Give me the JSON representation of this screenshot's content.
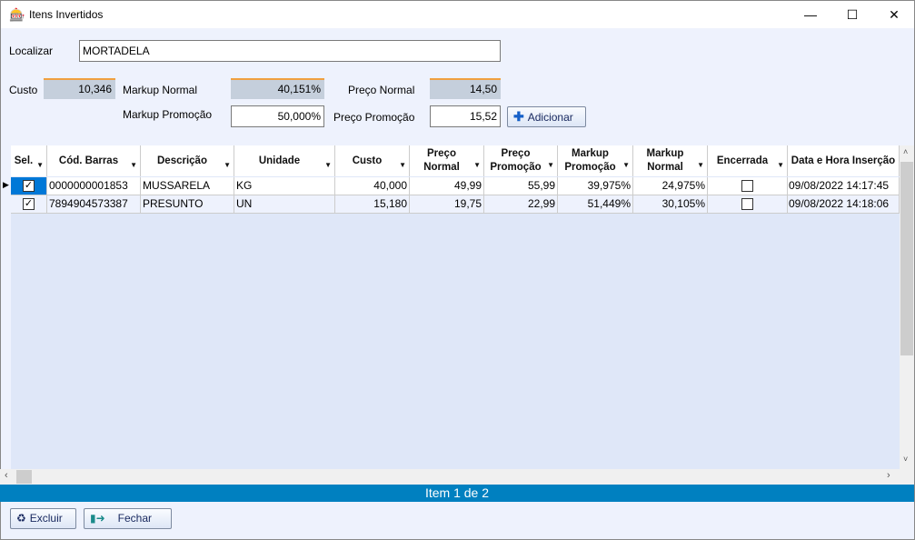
{
  "window": {
    "title": "Itens Invertidos",
    "minimize": "—",
    "maximize": "☐",
    "close": "✕"
  },
  "search": {
    "label": "Localizar",
    "value": "MORTADELA"
  },
  "summary": {
    "custo_label": "Custo",
    "custo": "10,346",
    "markup_normal_label": "Markup Normal",
    "markup_normal": "40,151%",
    "preco_normal_label": "Preço Normal",
    "preco_normal": "14,50",
    "markup_promocao_label": "Markup Promoção",
    "markup_promocao": "50,000%",
    "preco_promocao_label": "Preço Promoção",
    "preco_promocao": "15,52",
    "add_label": "Adicionar"
  },
  "grid": {
    "columns": [
      "Sel.",
      "Cód. Barras",
      "Descrição",
      "Unidade",
      "Custo",
      "Preço Normal",
      "Preço Promoção",
      "Markup Promoção",
      "Markup Normal",
      "Encerrada",
      "Data e Hora Inserção"
    ],
    "rows": [
      {
        "sel": true,
        "codigo": "0000000001853",
        "descricao": "MUSSARELA",
        "unidade": "KG",
        "custo": "40,000",
        "preco_normal": "49,99",
        "preco_promocao": "55,99",
        "markup_promocao": "39,975%",
        "markup_normal": "24,975%",
        "encerrada": false,
        "data": "09/08/2022 14:17:45"
      },
      {
        "sel": true,
        "codigo": "7894904573387",
        "descricao": "PRESUNTO",
        "unidade": "UN",
        "custo": "15,180",
        "preco_normal": "19,75",
        "preco_promocao": "22,99",
        "markup_promocao": "51,449%",
        "markup_normal": "30,105%",
        "encerrada": false,
        "data": "09/08/2022 14:18:06"
      }
    ]
  },
  "status": "Item 1 de 2",
  "buttons": {
    "excluir": "Excluir",
    "fechar": "Fechar"
  },
  "colors": {
    "status_bar": "#0080c0",
    "selected_cell": "#0078d7",
    "readonly_field": "#c5cfdc"
  }
}
